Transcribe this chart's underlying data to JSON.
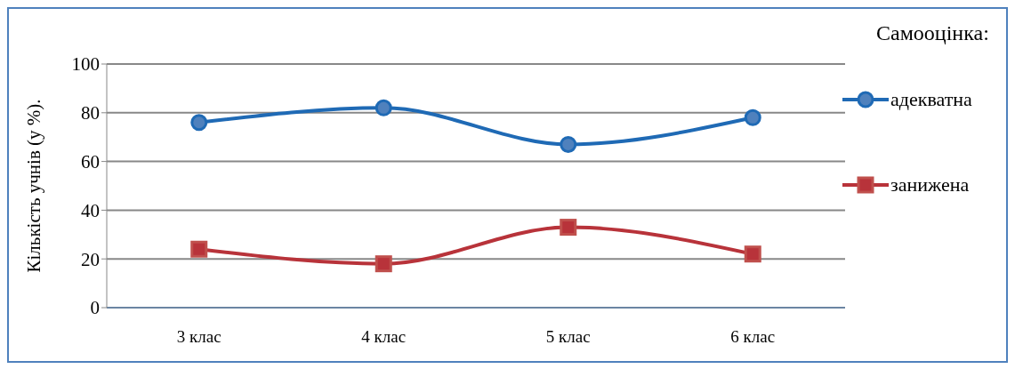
{
  "chart_data": {
    "type": "line",
    "ylabel": "Кількість учнів (у %).",
    "legend_title": "Самооцінка:",
    "categories": [
      "3 клас",
      "4 клас",
      "5 клас",
      "6 клас"
    ],
    "series": [
      {
        "name": "адекватна",
        "color": "#1f6ab5",
        "marker": "circle",
        "values": [
          76,
          82,
          67,
          78
        ]
      },
      {
        "name": "занижена",
        "color": "#b8333a",
        "marker": "square",
        "values": [
          24,
          18,
          33,
          22
        ]
      }
    ],
    "ylim": [
      0,
      100
    ],
    "yticks": [
      0,
      20,
      40,
      60,
      80,
      100
    ],
    "grid": "y",
    "legend": "right",
    "line_style": "solid"
  }
}
